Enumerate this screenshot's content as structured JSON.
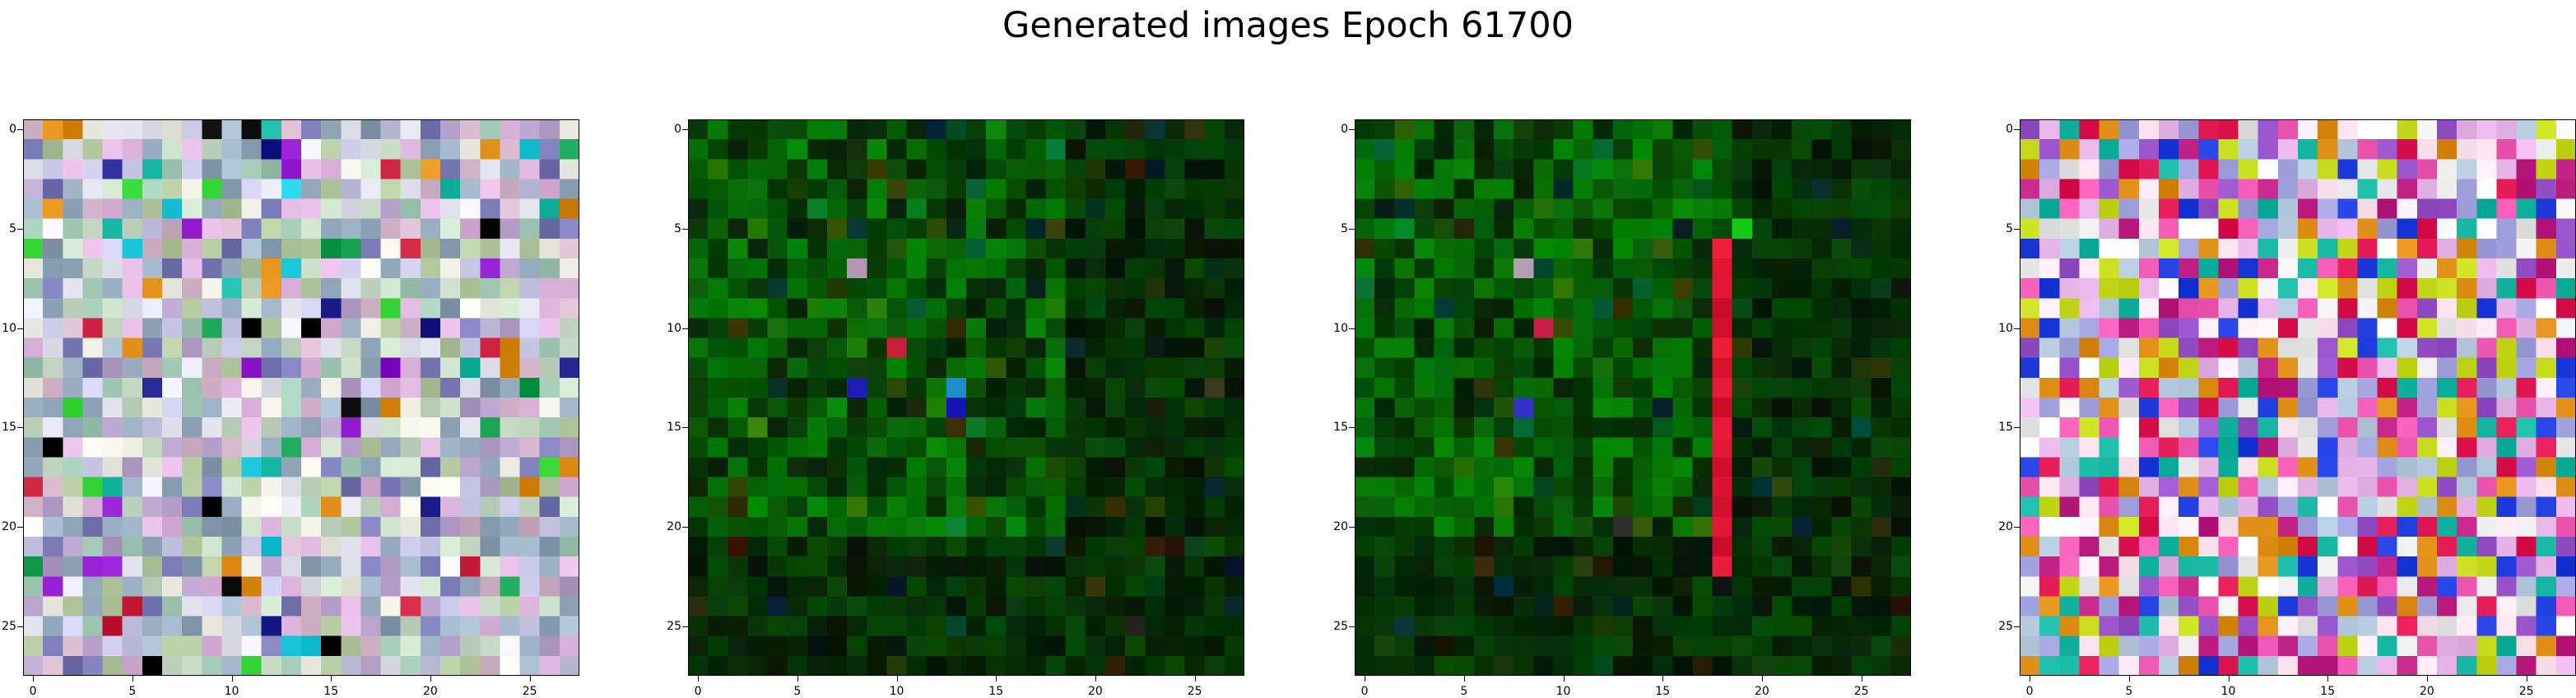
{
  "title": "Generated images Epoch 61700",
  "chart_data": {
    "type": "heatmap",
    "title": "Generated images Epoch 61700",
    "grid_size": 28,
    "xlim": [
      -0.5,
      27.5
    ],
    "ylim": [
      27.5,
      -0.5
    ],
    "x_ticks": [
      0,
      5,
      10,
      15,
      20,
      25
    ],
    "y_ticks": [
      0,
      5,
      10,
      15,
      20,
      25
    ],
    "x_tick_labels": [
      "0",
      "5",
      "10",
      "15",
      "20",
      "25"
    ],
    "y_tick_labels": [
      "0",
      "5",
      "10",
      "15",
      "20",
      "25"
    ],
    "grid": false,
    "images": [
      {
        "name": "",
        "style": "pastel-noise",
        "seed": 11,
        "base_color": "#c8b4d2"
      },
      {
        "name": "",
        "style": "dark-green-noise",
        "seed": 23,
        "base_color": "#0e4a0e",
        "highlights": [
          {
            "row": 7,
            "col": 8,
            "color": "#b496b4"
          },
          {
            "row": 11,
            "col": 10,
            "color": "#c81e3c"
          },
          {
            "row": 13,
            "col": 8,
            "color": "#1e1eb4"
          },
          {
            "row": 13,
            "col": 13,
            "color": "#1e8cc8"
          },
          {
            "row": 14,
            "col": 13,
            "color": "#1414b4"
          }
        ]
      },
      {
        "name": "",
        "style": "dark-green-noise-red-stripe",
        "seed": 37,
        "base_color": "#0c500c",
        "stripe_col": 18,
        "stripe_rows": [
          6,
          22
        ],
        "stripe_color": "#dc1432",
        "highlights": [
          {
            "row": 7,
            "col": 8,
            "color": "#b4a0b4"
          },
          {
            "row": 10,
            "col": 9,
            "color": "#c81e46"
          },
          {
            "row": 14,
            "col": 8,
            "color": "#3232c8"
          },
          {
            "row": 5,
            "col": 19,
            "color": "#14c814"
          }
        ]
      },
      {
        "name": "",
        "style": "vivid-noise",
        "seed": 53,
        "base_color": "#e6c8e6"
      }
    ]
  }
}
